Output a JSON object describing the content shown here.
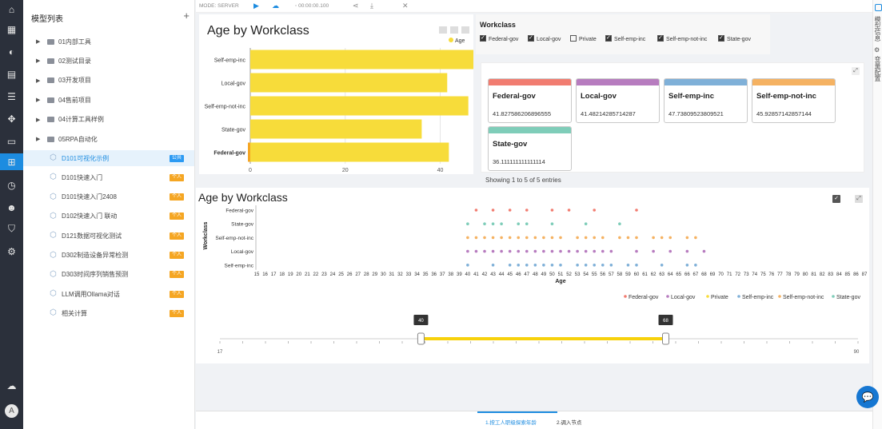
{
  "rail": {
    "icons": [
      "home-icon",
      "grid-icon",
      "logo-icon",
      "table-icon",
      "list-icon",
      "flow-icon",
      "document-icon",
      "model-icon",
      "clock-icon",
      "users-icon",
      "shield-icon",
      "settings-icon",
      "cloud-upload-icon"
    ],
    "active_index": 7,
    "avatar_letter": "A"
  },
  "sidebar": {
    "title": "模型列表",
    "add_label": "+",
    "folders": [
      "01内部工具",
      "02测试目录",
      "03开发项目",
      "04售前项目",
      "04计算工具样例",
      "05RPA自动化"
    ],
    "models": [
      {
        "label": "D101可视化示例",
        "tag": "公共",
        "tag_color": "#2b9af3",
        "selected": true
      },
      {
        "label": "D101快速入门",
        "tag": "个人",
        "tag_color": "#f5a623"
      },
      {
        "label": "D101快速入门2408",
        "tag": "个人",
        "tag_color": "#f5a623"
      },
      {
        "label": "D102快速入门 联动",
        "tag": "个人",
        "tag_color": "#f5a623"
      },
      {
        "label": "D121数据可视化测试",
        "tag": "个人",
        "tag_color": "#f5a623"
      },
      {
        "label": "D302制造设备异常检测",
        "tag": "个人",
        "tag_color": "#f5a623"
      },
      {
        "label": "D303时间序列销售预测",
        "tag": "个人",
        "tag_color": "#f5a623"
      },
      {
        "label": "LLM调用Ollama对话",
        "tag": "个人",
        "tag_color": "#f5a623"
      },
      {
        "label": "相关计算",
        "tag": "个人",
        "tag_color": "#f5a623"
      }
    ]
  },
  "topbar": {
    "mode": "MODE: SERVER",
    "time": "00:00:00.100"
  },
  "workclass_filter": {
    "title": "Workclass",
    "options": [
      {
        "label": "Federal-gov",
        "checked": true
      },
      {
        "label": "Local-gov",
        "checked": true
      },
      {
        "label": "Private",
        "checked": false
      },
      {
        "label": "Self-emp-inc",
        "checked": true
      },
      {
        "label": "Self-emp-not-inc",
        "checked": true
      },
      {
        "label": "State-gov",
        "checked": true
      }
    ]
  },
  "summary_cards": [
    {
      "title": "Federal-gov",
      "value": "41.827586206896555",
      "color": "#f17c70"
    },
    {
      "title": "Local-gov",
      "value": "41.48214285714287",
      "color": "#b77cbf"
    },
    {
      "title": "Self-emp-inc",
      "value": "47.73809523809521",
      "color": "#7fb0d8"
    },
    {
      "title": "Self-emp-not-inc",
      "value": "45.92857142857144",
      "color": "#f5b262"
    },
    {
      "title": "State-gov",
      "value": "36.111111111111114",
      "color": "#7fcdb9"
    }
  ],
  "entries_text": "Showing 1 to 5 of 5 entries",
  "slider": {
    "min_label": "17",
    "max_label": "90",
    "low": 40,
    "high": 68,
    "min": 17,
    "max": 90
  },
  "bottom_tabs": [
    "1.按工人职级探索年龄",
    "2.调入节点"
  ],
  "right_rail": [
    "模型信息",
    "变量配置"
  ],
  "chart_data": [
    {
      "type": "bar",
      "orientation": "horizontal",
      "title": "Age by Workclass",
      "categories": [
        "Self-emp-inc",
        "Local-gov",
        "Self-emp-not-inc",
        "State-gov",
        "Federal-gov"
      ],
      "values": [
        47.74,
        41.48,
        45.93,
        36.11,
        41.83
      ],
      "legend": [
        "Age"
      ],
      "series_color": "#f7dc3a",
      "xticks": [
        "0",
        "20",
        "40"
      ],
      "xlim": [
        0,
        47.5
      ],
      "highlighted_category": "Federal-gov"
    },
    {
      "type": "scatter",
      "title": "Age by Workclass",
      "xlabel": "Age",
      "ylabel": "Workclass",
      "xlim": [
        15,
        87
      ],
      "categories": [
        "Federal-gov",
        "State-gov",
        "Self-emp-not-inc",
        "Local-gov",
        "Self-emp-inc"
      ],
      "legend": [
        {
          "name": "Federal-gov",
          "color": "#f17c70"
        },
        {
          "name": "Local-gov",
          "color": "#b77cbf"
        },
        {
          "name": "Private",
          "color": "#f7dc3a"
        },
        {
          "name": "Self-emp-inc",
          "color": "#7fb0d8"
        },
        {
          "name": "Self-emp-not-inc",
          "color": "#f5b262"
        },
        {
          "name": "State-gov",
          "color": "#7fcdb9"
        }
      ],
      "points": {
        "Federal-gov": [
          41,
          43,
          45,
          47,
          50,
          52,
          55,
          60
        ],
        "State-gov": [
          40,
          42,
          43,
          44,
          46,
          47,
          50,
          54,
          58
        ],
        "Self-emp-not-inc": [
          40,
          41,
          42,
          43,
          44,
          45,
          46,
          47,
          48,
          49,
          50,
          51,
          53,
          54,
          55,
          56,
          58,
          59,
          60,
          62,
          63,
          64,
          66,
          67
        ],
        "Local-gov": [
          40,
          41,
          42,
          43,
          44,
          45,
          46,
          47,
          48,
          49,
          50,
          51,
          52,
          53,
          54,
          55,
          56,
          57,
          60,
          62,
          64,
          66,
          68
        ],
        "Self-emp-inc": [
          40,
          43,
          45,
          46,
          47,
          48,
          49,
          50,
          51,
          53,
          54,
          55,
          56,
          57,
          59,
          60,
          63,
          66,
          67
        ]
      }
    }
  ]
}
